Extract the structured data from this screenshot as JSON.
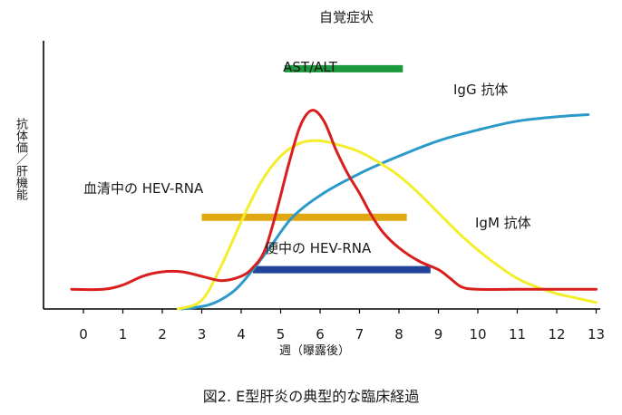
{
  "chart_data": {
    "type": "line",
    "title": "図2. E型肝炎の典型的な臨床経過",
    "xlabel": "週（曝露後）",
    "ylabel": "抗体価／肝機能",
    "xlim": [
      -1,
      13
    ],
    "ylim": [
      0,
      100
    ],
    "x_ticks": [
      "0",
      "1",
      "2",
      "3",
      "4",
      "5",
      "6",
      "7",
      "8",
      "9",
      "10",
      "11",
      "12",
      "13"
    ],
    "series": [
      {
        "name": "IgG 抗体",
        "label": "IgG 抗体",
        "color": "#2b9ac8",
        "points": [
          [
            2.5,
            0
          ],
          [
            3.2,
            2
          ],
          [
            3.8,
            8
          ],
          [
            4.3,
            18
          ],
          [
            4.8,
            30
          ],
          [
            5.3,
            42
          ],
          [
            6,
            52
          ],
          [
            7,
            62
          ],
          [
            8,
            70
          ],
          [
            9,
            77
          ],
          [
            10,
            82
          ],
          [
            11,
            86
          ],
          [
            12,
            88
          ],
          [
            12.8,
            89
          ]
        ]
      },
      {
        "name": "IgM 抗体",
        "label": "IgM 抗体",
        "color": "#f4ee2a",
        "points": [
          [
            2.4,
            0
          ],
          [
            3,
            4
          ],
          [
            3.5,
            20
          ],
          [
            4,
            40
          ],
          [
            4.5,
            58
          ],
          [
            5,
            70
          ],
          [
            5.5,
            76
          ],
          [
            6,
            77
          ],
          [
            6.5,
            75
          ],
          [
            7,
            72
          ],
          [
            7.5,
            67
          ],
          [
            8,
            61
          ],
          [
            8.5,
            53
          ],
          [
            9,
            44
          ],
          [
            9.5,
            35
          ],
          [
            10,
            27
          ],
          [
            10.5,
            20
          ],
          [
            11,
            14
          ],
          [
            11.5,
            10
          ],
          [
            12,
            7
          ],
          [
            12.5,
            5
          ],
          [
            13,
            3
          ]
        ]
      },
      {
        "name": "AST/ALT",
        "label": "AST/ALT",
        "color": "#d91e1e",
        "points": [
          [
            -0.3,
            9
          ],
          [
            0.5,
            9
          ],
          [
            1,
            11
          ],
          [
            1.5,
            15
          ],
          [
            2,
            17
          ],
          [
            2.5,
            17
          ],
          [
            3,
            15
          ],
          [
            3.5,
            13
          ],
          [
            4,
            15
          ],
          [
            4.3,
            19
          ],
          [
            4.6,
            27
          ],
          [
            4.9,
            45
          ],
          [
            5.2,
            66
          ],
          [
            5.5,
            84
          ],
          [
            5.8,
            91
          ],
          [
            6.1,
            86
          ],
          [
            6.4,
            73
          ],
          [
            6.7,
            62
          ],
          [
            7,
            53
          ],
          [
            7.3,
            43
          ],
          [
            7.6,
            35
          ],
          [
            8,
            28
          ],
          [
            8.5,
            22
          ],
          [
            9,
            18
          ],
          [
            9.3,
            14
          ],
          [
            9.6,
            10
          ],
          [
            10,
            9
          ],
          [
            11,
            9
          ],
          [
            12,
            9
          ],
          [
            13,
            9
          ]
        ]
      }
    ],
    "bars": [
      {
        "name": "自覚症状",
        "label": "自覚症状",
        "start": 5.1,
        "end": 8.1,
        "level": 110,
        "color": "#1b9a3d"
      },
      {
        "name": "血清中の HEV-RNA",
        "label": "血清中の HEV-RNA",
        "start": 3.0,
        "end": 8.2,
        "level": 42,
        "color": "#e0a914"
      },
      {
        "name": "便中の HEV-RNA",
        "label": "便中の HEV-RNA",
        "start": 4.3,
        "end": 8.8,
        "level": 18,
        "color": "#23439a"
      }
    ]
  }
}
